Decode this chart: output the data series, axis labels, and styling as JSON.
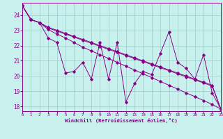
{
  "background_color": "#c8f0ec",
  "line_color": "#880088",
  "grid_color": "#99cccc",
  "xlim": [
    0,
    23
  ],
  "ylim": [
    17.7,
    24.8
  ],
  "xticks": [
    0,
    1,
    2,
    3,
    4,
    5,
    6,
    7,
    8,
    9,
    10,
    11,
    12,
    13,
    14,
    15,
    16,
    17,
    18,
    19,
    20,
    21,
    22,
    23
  ],
  "yticks": [
    18,
    19,
    20,
    21,
    22,
    23,
    24
  ],
  "xlabel": "Windchill (Refroidissement éolien,°C)",
  "line1": [
    24.6,
    23.7,
    23.5,
    22.5,
    22.2,
    20.2,
    20.3,
    20.9,
    19.8,
    22.2,
    19.8,
    22.2,
    18.3,
    19.5,
    20.3,
    20.1,
    21.5,
    22.9,
    20.9,
    20.5,
    19.8,
    21.4,
    18.9,
    17.85
  ],
  "line2": [
    24.6,
    23.7,
    23.5,
    23.15,
    22.95,
    22.75,
    22.55,
    22.35,
    22.15,
    21.95,
    21.75,
    21.55,
    21.35,
    21.15,
    20.95,
    20.75,
    20.55,
    20.35,
    20.15,
    19.95,
    19.75,
    19.55,
    19.35,
    17.85
  ],
  "line3": [
    24.6,
    23.7,
    23.5,
    23.2,
    23.0,
    22.8,
    22.6,
    22.4,
    22.2,
    22.0,
    21.8,
    21.6,
    21.4,
    21.2,
    21.0,
    20.8,
    20.6,
    20.4,
    20.2,
    20.0,
    19.8,
    19.6,
    19.4,
    17.85
  ],
  "line4": [
    24.6,
    23.7,
    23.5,
    23.05,
    22.75,
    22.5,
    22.2,
    21.9,
    21.65,
    21.4,
    21.15,
    20.9,
    20.65,
    20.4,
    20.15,
    19.9,
    19.65,
    19.4,
    19.15,
    18.9,
    18.65,
    18.4,
    18.15,
    17.85
  ]
}
